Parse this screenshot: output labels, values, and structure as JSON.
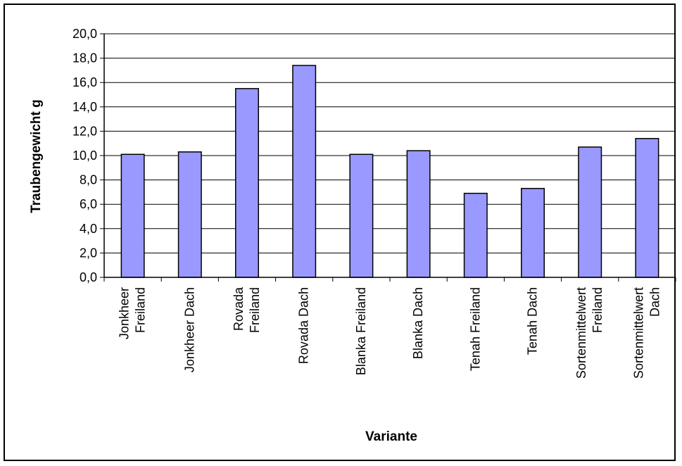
{
  "chart_data": {
    "type": "bar",
    "xlabel": "Variante",
    "ylabel": "Traubengewicht g",
    "ylim": [
      0,
      20
    ],
    "y_ticks": [
      "0,0",
      "2,0",
      "4,0",
      "6,0",
      "8,0",
      "10,0",
      "12,0",
      "14,0",
      "16,0",
      "18,0",
      "20,0"
    ],
    "grid": true,
    "bar_color": "#9999FF",
    "categories": [
      [
        "Jonkheer",
        "Freiland"
      ],
      [
        "Jonkheer Dach"
      ],
      [
        "Rovada",
        "Freiland"
      ],
      [
        "Rovada Dach"
      ],
      [
        "Blanka Freiland"
      ],
      [
        "Blanka Dach"
      ],
      [
        "Tenah Freiland"
      ],
      [
        "Tenah Dach"
      ],
      [
        "Sortenmittelwert",
        "Freiland"
      ],
      [
        "Sortenmittelwert",
        "Dach"
      ]
    ],
    "values": [
      10.1,
      10.3,
      15.5,
      17.4,
      10.1,
      10.4,
      6.9,
      7.3,
      10.7,
      11.4
    ]
  }
}
